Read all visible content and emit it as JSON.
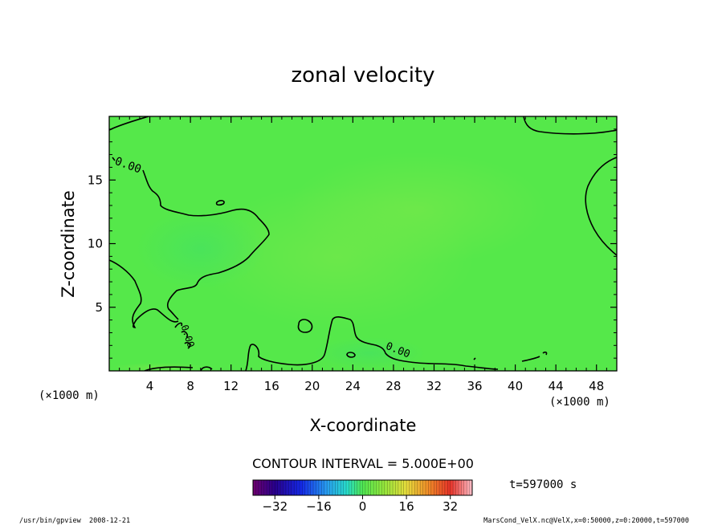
{
  "chart_data": {
    "type": "heatmap",
    "title": "zonal velocity",
    "xlabel": "X-coordinate",
    "ylabel": "Z-coordinate",
    "x_unit": "(×1000 m)",
    "y_unit": "",
    "xlim": [
      0,
      50
    ],
    "ylim": [
      0,
      20
    ],
    "xticks": [
      "4",
      "8",
      "12",
      "16",
      "20",
      "24",
      "28",
      "32",
      "36",
      "40",
      "44",
      "48"
    ],
    "yticks": [
      "5",
      "10",
      "15"
    ],
    "contour_interval": "CONTOUR INTERVAL = 5.000E+00",
    "contour_labels": [
      "0.00",
      "0.00",
      "0.00"
    ],
    "time_label": "t=597000 s",
    "colorbar": {
      "min": -40,
      "max": 40,
      "ticks": [
        "−32",
        "−16",
        "0",
        "16",
        "32"
      ],
      "tick_values": [
        -32,
        -16,
        0,
        16,
        32
      ]
    },
    "field_range_approx": [
      -3,
      3
    ],
    "dominant_color": "#55e84a"
  },
  "footer": {
    "left": "/usr/bin/gpview  2008-12-21",
    "right": "MarsCond_VelX.nc@VelX,x=0:50000,z=0:20000,t=597000"
  },
  "colors": {
    "field": "#55e84a",
    "contour": "#000000",
    "frame": "#000000"
  }
}
